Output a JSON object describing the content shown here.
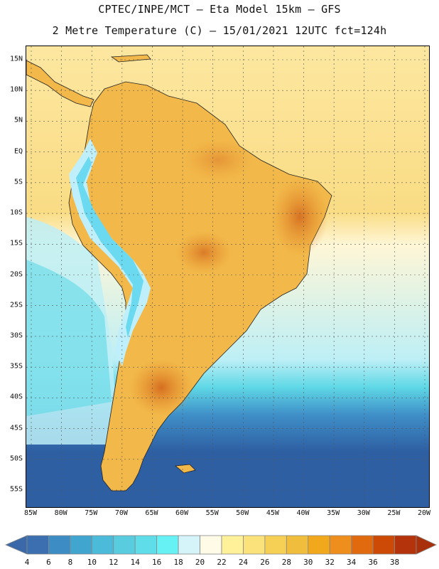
{
  "header": {
    "line1": "CPTEC/INPE/MCT –  Eta Model 15km – GFS",
    "line2": "2 Metre Temperature (C) – 15/01/2021 12UTC fct=124h"
  },
  "axes": {
    "lat_labels": [
      "15N",
      "10N",
      "5N",
      "EQ",
      "5S",
      "10S",
      "15S",
      "20S",
      "25S",
      "30S",
      "35S",
      "40S",
      "45S",
      "50S",
      "55S"
    ],
    "lon_labels": [
      "85W",
      "80W",
      "75W",
      "70W",
      "65W",
      "60W",
      "55W",
      "50W",
      "45W",
      "40W",
      "35W",
      "30W",
      "25W",
      "20W"
    ]
  },
  "colorbar": {
    "labels": [
      "4",
      "6",
      "8",
      "10",
      "12",
      "14",
      "16",
      "18",
      "20",
      "22",
      "24",
      "26",
      "28",
      "30",
      "32",
      "34",
      "36",
      "38"
    ],
    "colors": [
      "#3b6fb0",
      "#3d8cc4",
      "#41a6cf",
      "#4cbad9",
      "#5acce0",
      "#5fdde8",
      "#66f2f5",
      "#d4f4fa",
      "#fffbe6",
      "#fff09a",
      "#fbe27a",
      "#f6cf55",
      "#f0bd3c",
      "#f2a81c",
      "#ee8e1d",
      "#e26a0e",
      "#cc4a05",
      "#b5330a"
    ],
    "under_color": "#3a68a8",
    "over_color": "#a8300a"
  },
  "map_colors": {
    "ocean_deep": "#2e5fa3",
    "ocean_mid": "#3f8fc8",
    "ocean_cyan": "#5fd8e6",
    "ocean_light": "#bdeff6",
    "ocean_cream": "#fff6d6",
    "ocean_warm": "#fde7a0",
    "ocean_warmer": "#f9dc84",
    "land_base": "#f2b84a",
    "land_hot": "#e48b24",
    "land_hotter": "#d0601a",
    "andes_cold": "#6bd9ef",
    "andes_cool": "#bfeffa"
  }
}
